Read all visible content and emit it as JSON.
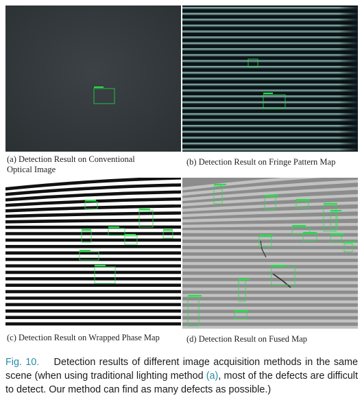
{
  "figure": {
    "panels": [
      {
        "id": "a",
        "caption_line1": "(a) Detection Result on Conventional",
        "caption_line2": "Optical Image"
      },
      {
        "id": "b",
        "caption_line1": "(b) Detection Result on Fringe Pattern Map",
        "caption_line2": ""
      },
      {
        "id": "c",
        "caption_line1": "(c) Detection Result on Wrapped Phase Map",
        "caption_line2": ""
      },
      {
        "id": "d",
        "caption_line1": "(d) Detection Result on Fused Map",
        "caption_line2": ""
      }
    ],
    "caption": {
      "label": "Fig. 10.",
      "text_before_ref": "Detection results of different image acquisition methods in the same scene (when using traditional lighting method ",
      "ref": "(a)",
      "text_after_ref": ", most of the defects are difficult to detect. Our method can find as many defects as possible.)"
    },
    "colors": {
      "detection_box": "#22e04a",
      "caption_label": "#2a8aa8",
      "optical_background": "#33383b"
    }
  }
}
